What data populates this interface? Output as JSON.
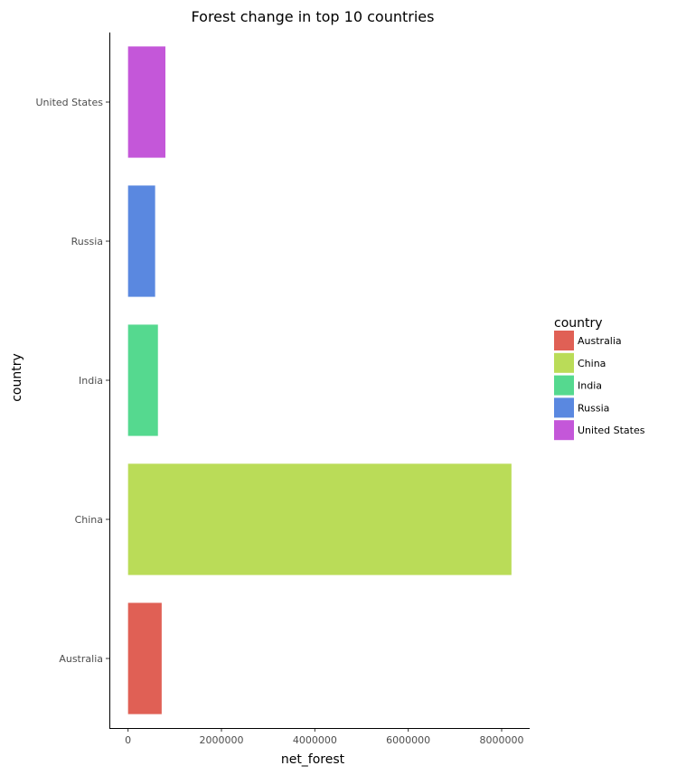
{
  "chart_data": {
    "type": "bar",
    "orientation": "horizontal",
    "title": "Forest change in top 10 countries",
    "xlabel": "net_forest",
    "ylabel": "country",
    "categories": [
      "Australia",
      "China",
      "India",
      "Russia",
      "United States"
    ],
    "values": [
      720000,
      8210000,
      640000,
      580000,
      800000
    ],
    "colors": [
      "#e06055",
      "#badc58",
      "#55d98f",
      "#5a88e0",
      "#c457d9"
    ],
    "xlim": [
      -400000,
      8600000
    ],
    "xticks": [
      0,
      2000000,
      4000000,
      6000000,
      8000000
    ],
    "xtick_labels": [
      "0",
      "2000000",
      "4000000",
      "6000000",
      "8000000"
    ],
    "legend": {
      "title": "country",
      "position": "right",
      "entries": [
        "Australia",
        "China",
        "India",
        "Russia",
        "United States"
      ]
    },
    "grid": false
  }
}
